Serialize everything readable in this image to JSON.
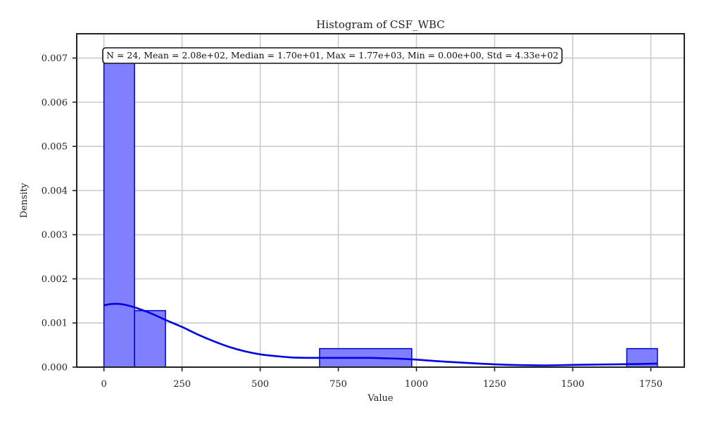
{
  "chart_data": {
    "type": "histogram",
    "title": "Histogram of CSF_WBC",
    "xlabel": "Value",
    "ylabel": "Density",
    "xlim": [
      -87,
      1857
    ],
    "ylim": [
      0,
      0.00755
    ],
    "grid": true,
    "x_ticks": [
      0,
      250,
      500,
      750,
      1000,
      1250,
      1500,
      1750
    ],
    "x_tick_labels": [
      "0",
      "250",
      "500",
      "750",
      "1000",
      "1250",
      "1500",
      "1750"
    ],
    "y_ticks": [
      0,
      0.001,
      0.002,
      0.003,
      0.004,
      0.005,
      0.006,
      0.007
    ],
    "y_tick_labels": [
      "0.000",
      "0.001",
      "0.002",
      "0.003",
      "0.004",
      "0.005",
      "0.006",
      "0.007"
    ],
    "bars": [
      {
        "x0": 0,
        "x1": 98,
        "density": 0.00694
      },
      {
        "x0": 98,
        "x1": 197,
        "density": 0.00128
      },
      {
        "x0": 690,
        "x1": 985,
        "density": 0.00042
      },
      {
        "x0": 1673,
        "x1": 1771,
        "density": 0.00042
      }
    ],
    "kde": {
      "x": [
        0,
        25,
        50,
        75,
        100,
        150,
        200,
        250,
        300,
        350,
        400,
        450,
        500,
        550,
        600,
        650,
        700,
        750,
        800,
        850,
        900,
        950,
        1000,
        1100,
        1200,
        1300,
        1400,
        1500,
        1600,
        1700,
        1771
      ],
      "y": [
        0.0014,
        0.00143,
        0.00143,
        0.0014,
        0.00135,
        0.00122,
        0.00106,
        0.00091,
        0.00074,
        0.00059,
        0.00046,
        0.00036,
        0.00029,
        0.00025,
        0.00022,
        0.00021,
        0.00021,
        0.00021,
        0.00021,
        0.00021,
        0.0002,
        0.00019,
        0.00017,
        0.00012,
        8e-05,
        5e-05,
        4e-05,
        5e-05,
        6e-05,
        7e-05,
        8e-05
      ]
    },
    "colors": {
      "bar_fill": "#8080ff",
      "bar_edge": "#0000cc",
      "kde": "#0000e6",
      "grid": "#cccccc"
    },
    "annotation": "N = 24, Mean = 2.08e+02, Median = 1.70e+01, Max = 1.77e+03, Min = 0.00e+00, Std = 4.33e+02"
  }
}
